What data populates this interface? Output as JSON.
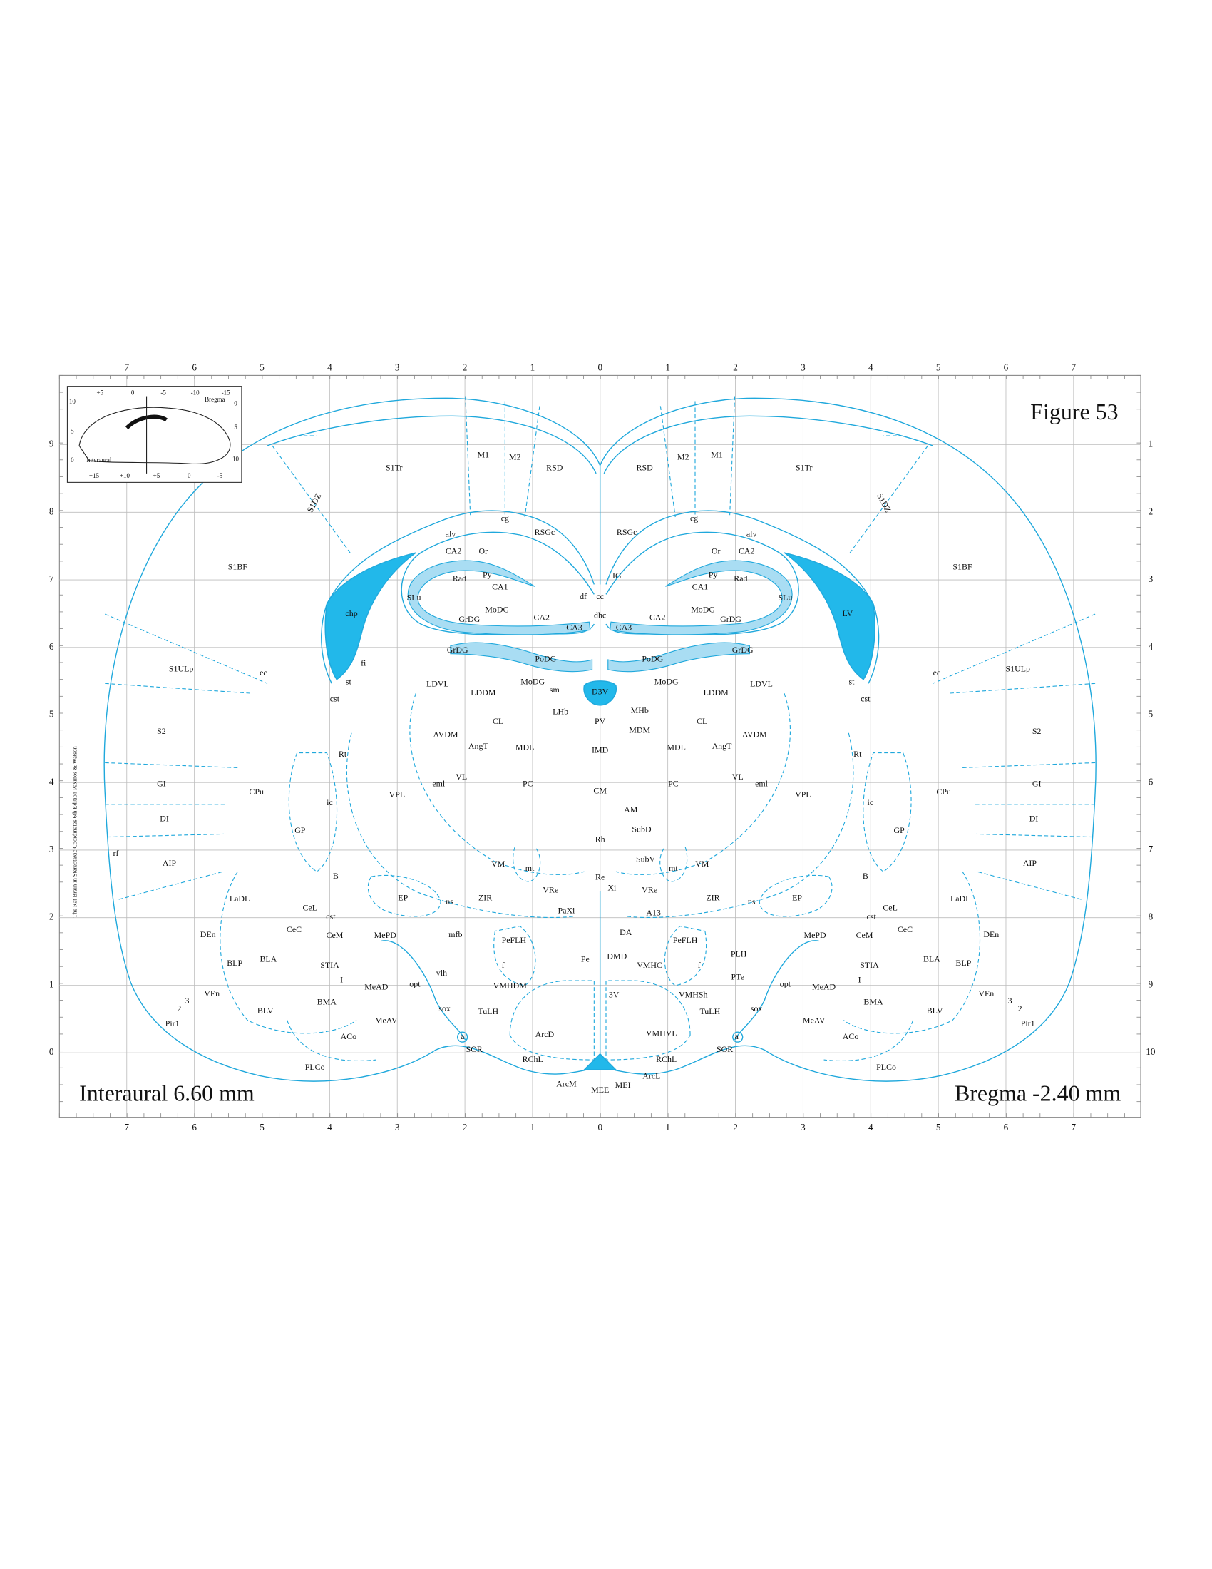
{
  "header": {
    "figure": "Figure 53",
    "credit": "The Rat Brain in Stereotaxic Coordinates 6th Edition Paxinos & Watson"
  },
  "footer": {
    "interaural": "Interaural 6.60 mm",
    "bregma": "Bregma -2.40 mm"
  },
  "axes": {
    "horizontal": [
      7,
      6,
      5,
      4,
      3,
      2,
      1,
      0,
      1,
      2,
      3,
      4,
      5,
      6,
      7
    ],
    "left": [
      9,
      8,
      7,
      6,
      5,
      4,
      3,
      2,
      1,
      0
    ],
    "right": [
      1,
      2,
      3,
      4,
      5,
      6,
      7,
      8,
      9,
      10
    ]
  },
  "inset": {
    "top": [
      "+5",
      "0",
      "-5",
      "-10",
      "-15"
    ],
    "bregma": "Bregma",
    "left": [
      "10",
      "5",
      "0"
    ],
    "interaural": "Interaural",
    "right": [
      "0",
      "5",
      "10"
    ],
    "bottom": [
      "+15",
      "+10",
      "+5",
      "0",
      "-5"
    ]
  },
  "regions": [
    "M1",
    "M2",
    "RSD",
    "S1Tr",
    "S1DZ",
    "cg",
    "RSGc",
    "S1BF",
    "alv",
    "CA2",
    "Or",
    "Rad",
    "Py",
    "CA1",
    "SLu",
    "MoDG",
    "CA2",
    "GrDG",
    "CA3",
    "df",
    "chp",
    "GrDG",
    "PoDG",
    "fi",
    "S1ULp",
    "ec",
    "st",
    "cst",
    "LDVL",
    "LDDM",
    "MoDG",
    "sm",
    "LHb",
    "CL",
    "AVDM",
    "AngT",
    "MDL",
    "S2",
    "Rt",
    "VL",
    "eml",
    "VPL",
    "PC",
    "GI",
    "CPu",
    "ic",
    "DI",
    "GP",
    "VM",
    "mt",
    "AIP",
    "rf",
    "VRe",
    "B",
    "LaDL",
    "EP",
    "ns",
    "ZIR",
    "PaXi",
    "CeL",
    "cst",
    "CeC",
    "CeM",
    "DEn",
    "MePD",
    "mfb",
    "PeFLH",
    "BLP",
    "BLA",
    "STIA",
    "f",
    "vlh",
    "I",
    "MeAD",
    "opt",
    "VEn",
    "2",
    "3",
    "BLV",
    "BMA",
    "sox",
    "TuLH",
    "Pir1",
    "MeAV",
    "ArcD",
    "a",
    "SOR",
    "ACo",
    "RChL",
    "PLCo",
    "ArcM",
    "MEE",
    "MEI",
    "VMHDM",
    "IG",
    "cc",
    "dhc",
    "D3V",
    "PV",
    "MHb",
    "MDM",
    "IMD",
    "CM",
    "AM",
    "SubD",
    "Rh",
    "SubV",
    "Re",
    "Xi",
    "A13",
    "DA",
    "Pe",
    "DMD",
    "VMHC",
    "3V",
    "VMHSh",
    "VMHVL",
    "RSD",
    "M2",
    "M1",
    "S1Tr",
    "S1DZ",
    "RSGc",
    "cg",
    "alv",
    "Or",
    "CA2",
    "Py",
    "Rad",
    "CA1",
    "SLu",
    "LV",
    "MoDG",
    "CA2",
    "GrDG",
    "CA3",
    "S1BF",
    "GrDG",
    "PoDG",
    "MoDG",
    "LDDM",
    "LDVL",
    "st",
    "cst",
    "ec",
    "S1ULp",
    "CL",
    "AVDM",
    "AngT",
    "MDL",
    "S2",
    "Rt",
    "VL",
    "eml",
    "VPL",
    "PC",
    "GI",
    "CPu",
    "ic",
    "DI",
    "GP",
    "VM",
    "mt",
    "AIP",
    "VRe",
    "B",
    "LaDL",
    "EP",
    "ns",
    "ZIR",
    "CeL",
    "cst",
    "CeC",
    "CeM",
    "DEn",
    "MePD",
    "PeFLH",
    "PLH",
    "f",
    "BLA",
    "BLP",
    "STIA",
    "I",
    "PTe",
    "opt",
    "MeAD",
    "VEn",
    "3",
    "2",
    "BMA",
    "BLV",
    "sox",
    "TuLH",
    "Pir1",
    "MeAV",
    "ACo",
    "a",
    "SOR",
    "RChL",
    "PLCo",
    "ArcL"
  ]
}
